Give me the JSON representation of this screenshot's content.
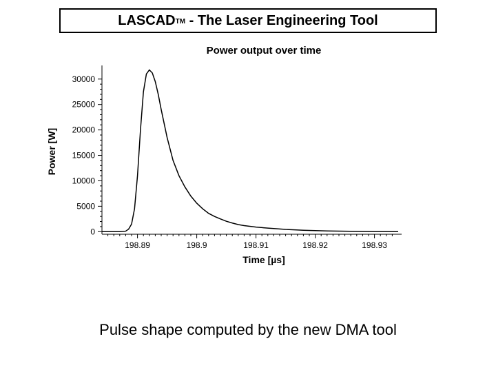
{
  "header": {
    "brand": "LASCAD",
    "tm": "TM",
    "rest": " - The Laser Engineering Tool"
  },
  "caption": "Pulse shape computed by the new DMA tool",
  "chart": {
    "type": "line",
    "title": "Power output over time",
    "title_fontsize": 15,
    "xlabel": "Time [µs]",
    "ylabel": "Power [W]",
    "label_fontsize": 14,
    "tick_fontsize": 12,
    "background_color": "#ffffff",
    "axis_color": "#000000",
    "curve_color": "#000000",
    "line_width": 1.5,
    "xlim": [
      198.884,
      198.934
    ],
    "ylim": [
      -500,
      32000
    ],
    "xticks": [
      198.89,
      198.9,
      198.91,
      198.92,
      198.93
    ],
    "yticks": [
      0,
      5000,
      10000,
      15000,
      20000,
      25000,
      30000
    ],
    "minor_x_count": 9,
    "minor_y_count": 4,
    "x": [
      198.884,
      198.885,
      198.886,
      198.887,
      198.888,
      198.8885,
      198.889,
      198.8895,
      198.89,
      198.8905,
      198.891,
      198.8915,
      198.892,
      198.8925,
      198.893,
      198.8935,
      198.894,
      198.895,
      198.896,
      198.897,
      198.898,
      198.899,
      198.9,
      198.901,
      198.902,
      198.903,
      198.904,
      198.905,
      198.906,
      198.907,
      198.908,
      198.91,
      198.912,
      198.915,
      198.918,
      198.922,
      198.926,
      198.93,
      198.934
    ],
    "y": [
      0,
      0,
      0,
      10,
      100,
      500,
      1500,
      4500,
      11000,
      20000,
      27500,
      31000,
      31800,
      31200,
      29500,
      27000,
      24000,
      18500,
      14000,
      11000,
      8800,
      7000,
      5600,
      4500,
      3600,
      3000,
      2500,
      2050,
      1700,
      1400,
      1200,
      900,
      700,
      450,
      280,
      150,
      70,
      20,
      0
    ]
  }
}
